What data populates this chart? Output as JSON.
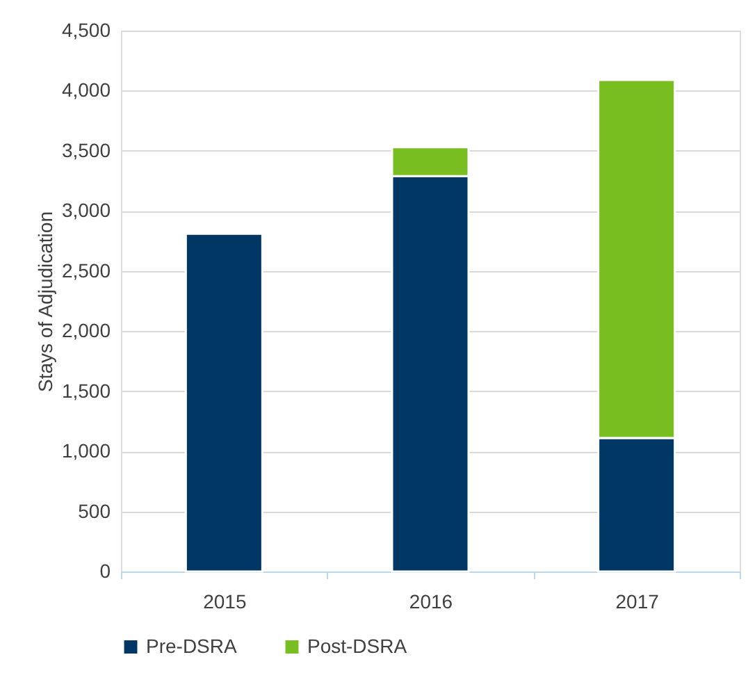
{
  "chart_data": {
    "type": "bar",
    "stacked": true,
    "ylabel": "Stays of Adjudication",
    "categories": [
      "2015",
      "2016",
      "2017"
    ],
    "series": [
      {
        "name": "Pre-DSRA",
        "color": "#003764",
        "values": [
          2810,
          3290,
          1110
        ]
      },
      {
        "name": "Post-DSRA",
        "color": "#78be20",
        "values": [
          null,
          240,
          2980
        ]
      }
    ],
    "ylim": [
      0,
      4500
    ],
    "yticks": [
      {
        "value": 0,
        "label": "0"
      },
      {
        "value": 500,
        "label": "500"
      },
      {
        "value": 1000,
        "label": "1,000"
      },
      {
        "value": 1500,
        "label": "1,500"
      },
      {
        "value": 2000,
        "label": "2,000"
      },
      {
        "value": 2500,
        "label": "2,500"
      },
      {
        "value": 3000,
        "label": "3,000"
      },
      {
        "value": 3500,
        "label": "3,500"
      },
      {
        "value": 4000,
        "label": "4,000"
      },
      {
        "value": 4500,
        "label": "4,500"
      }
    ],
    "grid": "y",
    "legend": "bottom"
  }
}
